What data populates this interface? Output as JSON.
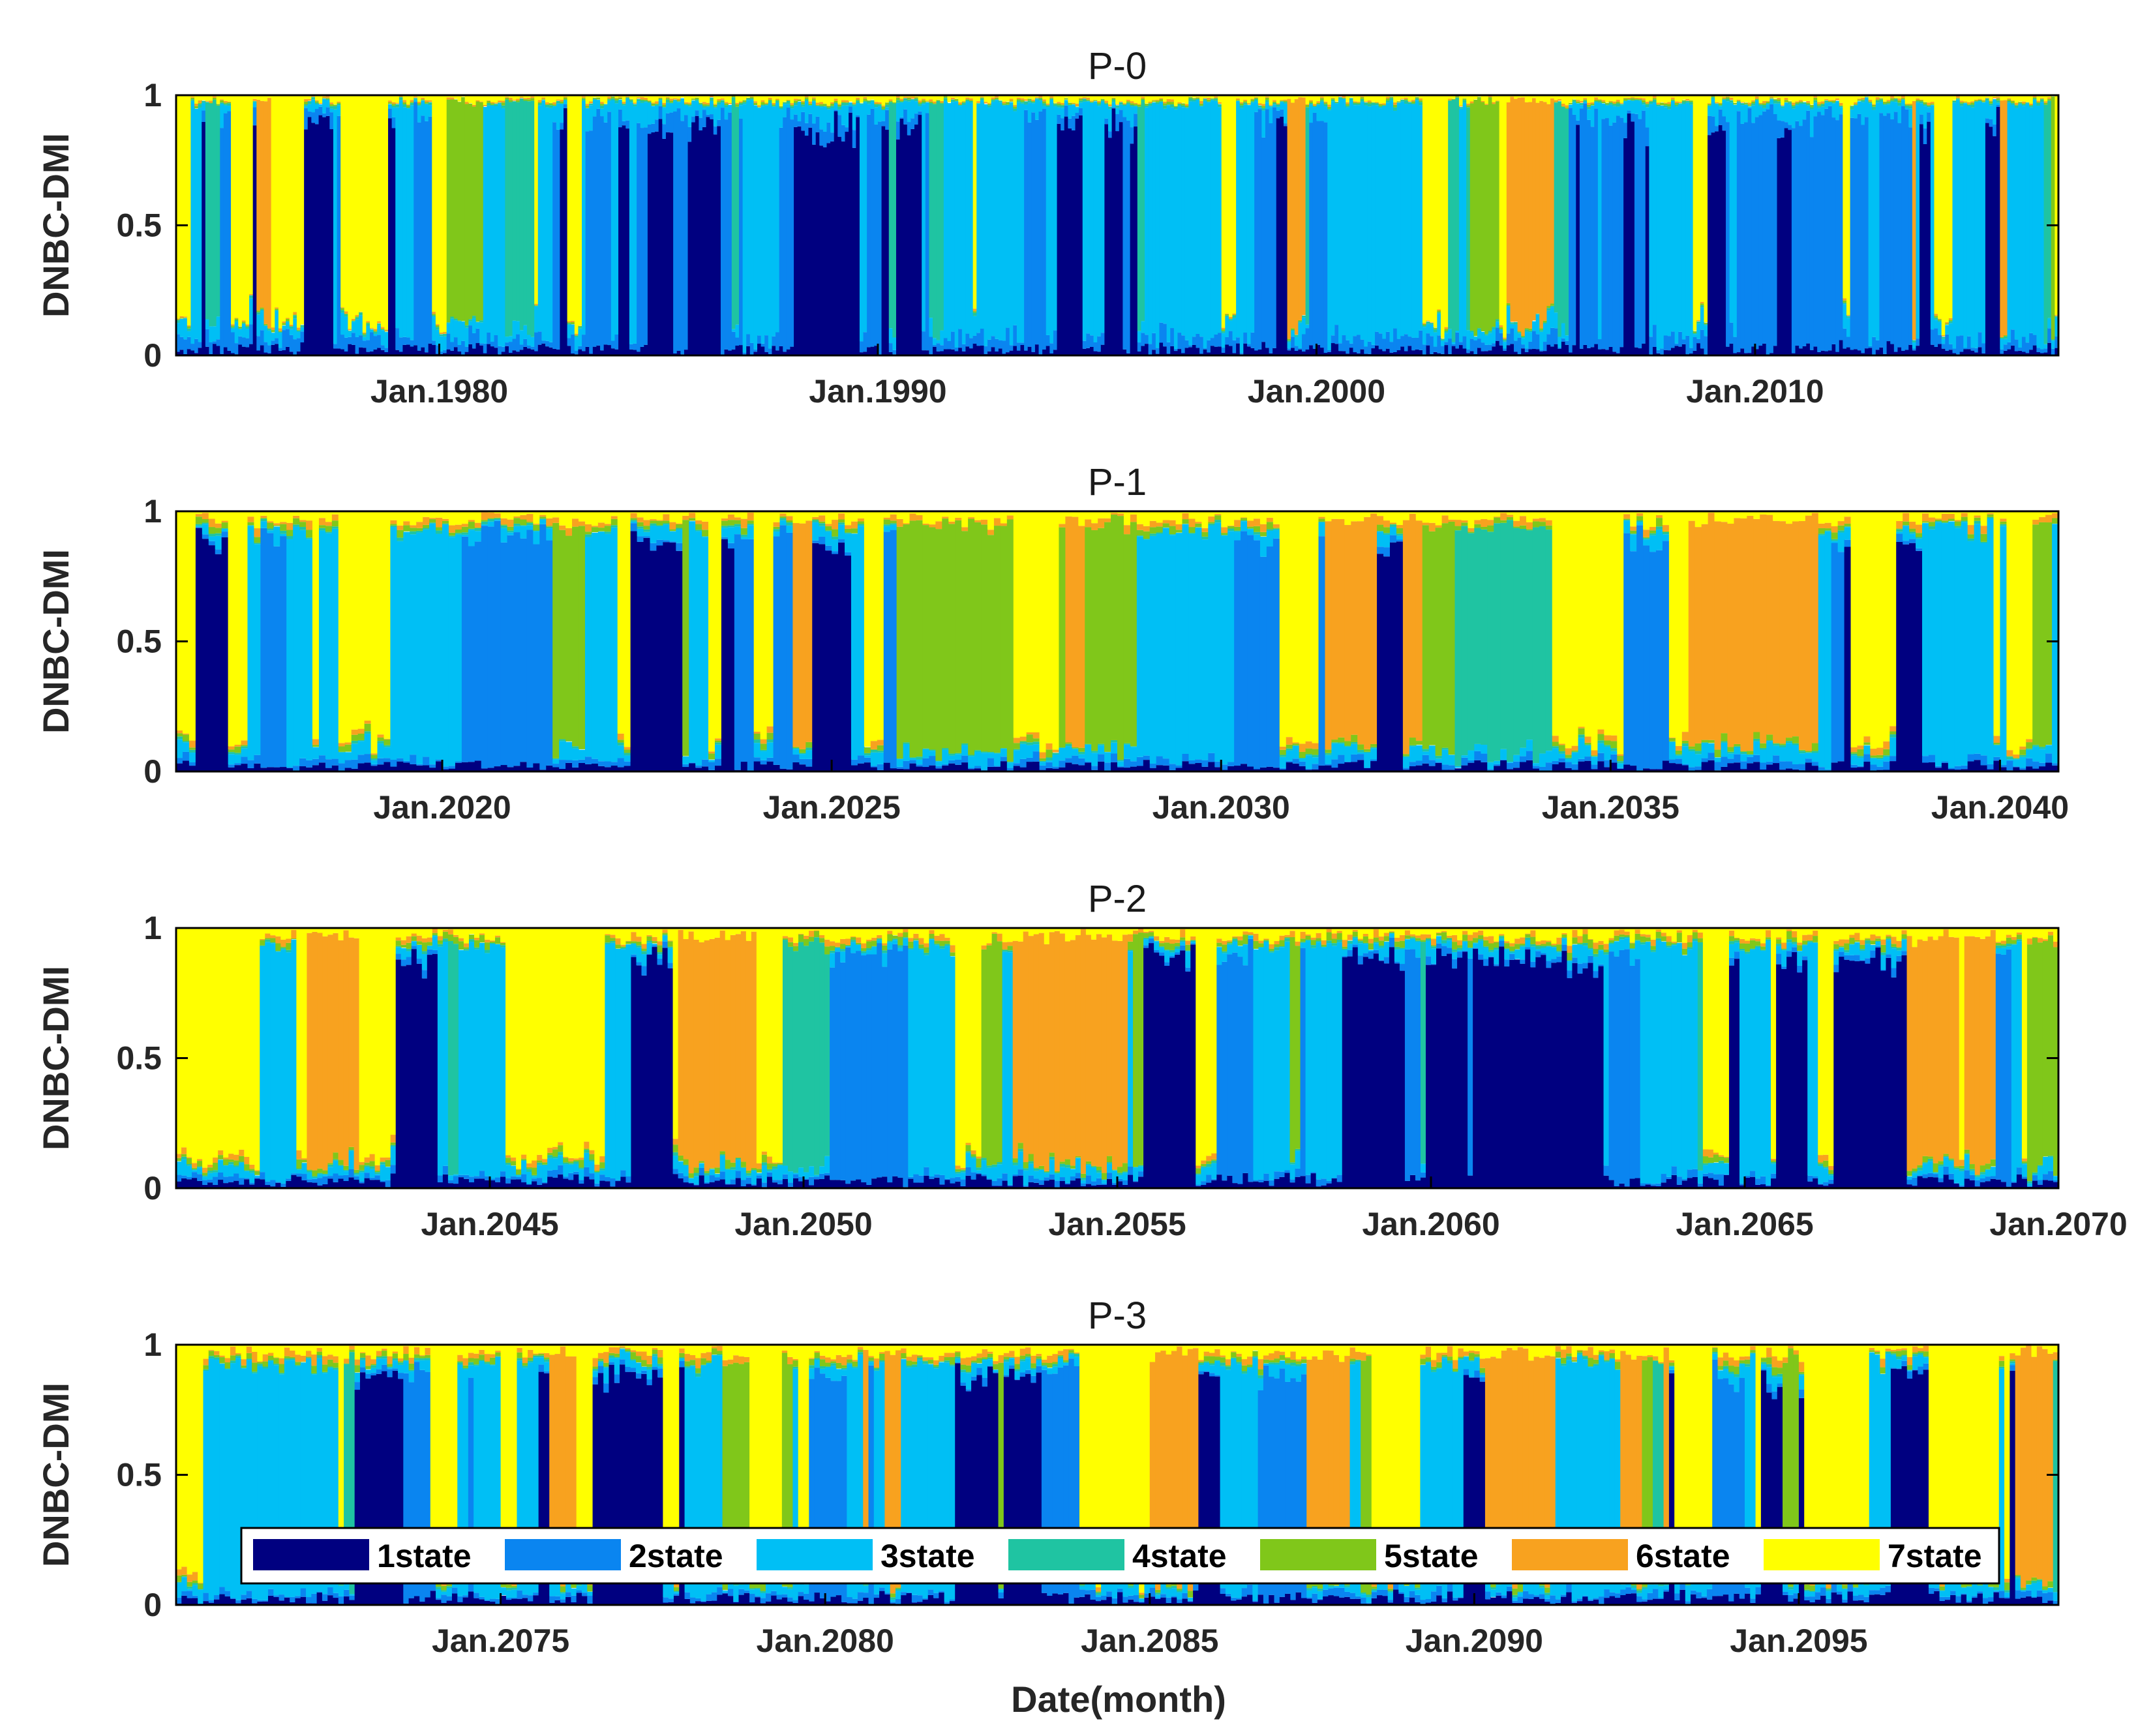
{
  "chart_data": {
    "type": "bar",
    "stacked": true,
    "x_unit": "month",
    "xlabel": "Date(month)",
    "ylabel": "DNBC-DMI",
    "ylim": [
      0,
      1
    ],
    "y_ticks": [
      "0",
      "0.5",
      "1"
    ],
    "legend": {
      "placement": "bottom-inside-last-panel",
      "entries": [
        {
          "label": "1state",
          "color": "#000080"
        },
        {
          "label": "2state",
          "color": "#0a85f0"
        },
        {
          "label": "3state",
          "color": "#00bff5"
        },
        {
          "label": "4state",
          "color": "#1fc4a2"
        },
        {
          "label": "5state",
          "color": "#80c71a"
        },
        {
          "label": "6state",
          "color": "#f8a21f"
        },
        {
          "label": "7state",
          "color": "#ffff00"
        }
      ]
    },
    "panels": [
      {
        "title": "P-0",
        "x_range": [
          "1974-01",
          "2016-12"
        ],
        "ticks": [
          {
            "date": "1980-01",
            "label": "Jan.1980"
          },
          {
            "date": "1990-01",
            "label": "Jan.1990"
          },
          {
            "date": "2000-01",
            "label": "Jan.2000"
          },
          {
            "date": "2010-01",
            "label": "Jan.2010"
          }
        ],
        "profile": [
          0.17,
          0.27,
          0.34,
          0.04,
          0.03,
          0.03,
          0.12
        ],
        "series_values": "monthly stacked state probabilities (1state..7state, each month sums to 1); dense series not individually labelled in the figure"
      },
      {
        "title": "P-1",
        "x_range": [
          "2016-08",
          "2040-10"
        ],
        "ticks": [
          {
            "date": "2020-01",
            "label": "Jan.2020"
          },
          {
            "date": "2025-01",
            "label": "Jan.2025"
          },
          {
            "date": "2030-01",
            "label": "Jan.2030"
          },
          {
            "date": "2035-01",
            "label": "Jan.2035"
          },
          {
            "date": "2040-01",
            "label": "Jan.2040"
          }
        ],
        "profile": [
          0.14,
          0.13,
          0.25,
          0.04,
          0.1,
          0.12,
          0.22
        ],
        "series_values": "monthly stacked state probabilities (1state..7state, each month sums to 1); dense series not individually labelled in the figure"
      },
      {
        "title": "P-2",
        "x_range": [
          "2040-01",
          "2070-01"
        ],
        "ticks": [
          {
            "date": "2045-01",
            "label": "Jan.2045"
          },
          {
            "date": "2050-01",
            "label": "Jan.2050"
          },
          {
            "date": "2055-01",
            "label": "Jan.2055"
          },
          {
            "date": "2060-01",
            "label": "Jan.2060"
          },
          {
            "date": "2065-01",
            "label": "Jan.2065"
          },
          {
            "date": "2070-01",
            "label": "Jan.2070"
          }
        ],
        "profile": [
          0.18,
          0.12,
          0.24,
          0.04,
          0.11,
          0.1,
          0.21
        ],
        "series_values": "monthly stacked state probabilities (1state..7state, each month sums to 1); dense series not individually labelled in the figure"
      },
      {
        "title": "P-3",
        "x_range": [
          "2070-01",
          "2099-01"
        ],
        "ticks": [
          {
            "date": "2075-01",
            "label": "Jan.2075"
          },
          {
            "date": "2080-01",
            "label": "Jan.2080"
          },
          {
            "date": "2085-01",
            "label": "Jan.2085"
          },
          {
            "date": "2090-01",
            "label": "Jan.2090"
          },
          {
            "date": "2095-01",
            "label": "Jan.2095"
          }
        ],
        "profile": [
          0.17,
          0.12,
          0.23,
          0.04,
          0.1,
          0.13,
          0.21
        ],
        "series_values": "monthly stacked state probabilities (1state..7state, each month sums to 1); dense series not individually labelled in the figure"
      }
    ]
  }
}
